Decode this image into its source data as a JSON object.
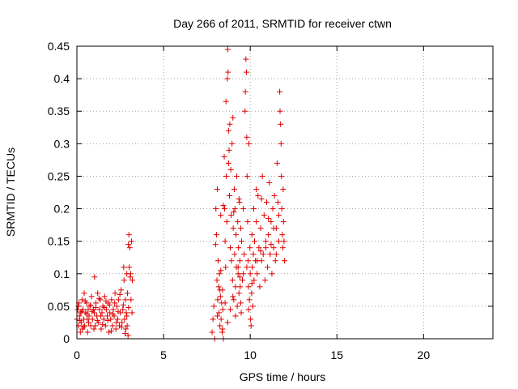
{
  "chart_data": {
    "type": "scatter",
    "title": "Day 266 of 2011, SRMTID for receiver ctwn",
    "xlabel": "GPS time / hours",
    "ylabel": "SRMTID / TECUs",
    "xlim": [
      0,
      24
    ],
    "ylim": [
      0,
      0.45
    ],
    "xticks": [
      0,
      5,
      10,
      15,
      20
    ],
    "xtick_labels": [
      "0",
      "5",
      "10",
      "15",
      "20"
    ],
    "yticks": [
      0,
      0.05,
      0.1,
      0.15,
      0.2,
      0.25,
      0.3,
      0.35,
      0.4,
      0.45
    ],
    "ytick_labels": [
      "0",
      "0.05",
      "0.1",
      "0.15",
      "0.2",
      "0.25",
      "0.3",
      "0.35",
      "0.4",
      "0.45"
    ],
    "grid": true,
    "marker": "+",
    "series": [
      {
        "name": "SRMTID",
        "color": "#e00000",
        "points": [
          [
            0.0,
            0.03
          ],
          [
            0.05,
            0.045
          ],
          [
            0.1,
            0.02
          ],
          [
            0.12,
            0.055
          ],
          [
            0.15,
            0.035
          ],
          [
            0.2,
            0.01
          ],
          [
            0.22,
            0.04
          ],
          [
            0.25,
            0.025
          ],
          [
            0.3,
            0.06
          ],
          [
            0.32,
            0.015
          ],
          [
            0.35,
            0.045
          ],
          [
            0.4,
            0.03
          ],
          [
            0.42,
            0.07
          ],
          [
            0.45,
            0.02
          ],
          [
            0.5,
            0.04
          ],
          [
            0.55,
            0.055
          ],
          [
            0.6,
            0.03
          ],
          [
            0.62,
            0.01
          ],
          [
            0.65,
            0.045
          ],
          [
            0.7,
            0.035
          ],
          [
            0.75,
            0.05
          ],
          [
            0.8,
            0.02
          ],
          [
            0.85,
            0.065
          ],
          [
            0.9,
            0.03
          ],
          [
            0.95,
            0.045
          ],
          [
            1.0,
            0.04
          ],
          [
            1.02,
            0.095
          ],
          [
            1.05,
            0.02
          ],
          [
            1.1,
            0.055
          ],
          [
            1.15,
            0.035
          ],
          [
            1.2,
            0.07
          ],
          [
            1.25,
            0.025
          ],
          [
            1.3,
            0.045
          ],
          [
            1.35,
            0.06
          ],
          [
            1.4,
            0.015
          ],
          [
            1.45,
            0.04
          ],
          [
            1.5,
            0.05
          ],
          [
            1.55,
            0.03
          ],
          [
            1.6,
            0.065
          ],
          [
            1.65,
            0.02
          ],
          [
            1.7,
            0.045
          ],
          [
            1.75,
            0.035
          ],
          [
            1.8,
            0.055
          ],
          [
            1.85,
            0.01
          ],
          [
            1.9,
            0.04
          ],
          [
            1.95,
            0.03
          ],
          [
            2.0,
            0.06
          ],
          [
            2.05,
            0.02
          ],
          [
            2.1,
            0.045
          ],
          [
            2.15,
            0.035
          ],
          [
            2.2,
            0.07
          ],
          [
            2.25,
            0.015
          ],
          [
            2.3,
            0.05
          ],
          [
            2.35,
            0.03
          ],
          [
            2.4,
            0.06
          ],
          [
            2.45,
            0.02
          ],
          [
            2.5,
            0.04
          ],
          [
            2.55,
            0.075
          ],
          [
            2.6,
            0.025
          ],
          [
            2.65,
            0.045
          ],
          [
            2.7,
            0.11
          ],
          [
            2.72,
            0.09
          ],
          [
            2.75,
            0.03
          ],
          [
            2.8,
            0.06
          ],
          [
            2.82,
            0.015
          ],
          [
            2.85,
            0.04
          ],
          [
            2.88,
            0.1
          ],
          [
            2.9,
            0.02
          ],
          [
            2.92,
            0.07
          ],
          [
            2.95,
            0.005
          ],
          [
            2.97,
            0.145
          ],
          [
            3.0,
            0.16
          ],
          [
            3.02,
            0.11
          ],
          [
            3.05,
            0.14
          ],
          [
            3.08,
            0.095
          ],
          [
            3.1,
            0.1
          ],
          [
            3.12,
            0.06
          ],
          [
            3.15,
            0.15
          ],
          [
            3.18,
            0.04
          ],
          [
            3.2,
            0.09
          ],
          [
            0.08,
            0.05
          ],
          [
            0.18,
            0.028
          ],
          [
            0.28,
            0.042
          ],
          [
            0.38,
            0.018
          ],
          [
            0.48,
            0.058
          ],
          [
            0.58,
            0.038
          ],
          [
            0.68,
            0.025
          ],
          [
            0.78,
            0.052
          ],
          [
            0.88,
            0.042
          ],
          [
            0.98,
            0.015
          ],
          [
            1.08,
            0.048
          ],
          [
            1.18,
            0.028
          ],
          [
            1.28,
            0.062
          ],
          [
            1.38,
            0.035
          ],
          [
            1.48,
            0.022
          ],
          [
            1.58,
            0.048
          ],
          [
            1.68,
            0.058
          ],
          [
            1.78,
            0.028
          ],
          [
            1.88,
            0.052
          ],
          [
            1.98,
            0.012
          ],
          [
            2.08,
            0.038
          ],
          [
            2.18,
            0.055
          ],
          [
            2.28,
            0.025
          ],
          [
            2.38,
            0.042
          ],
          [
            2.48,
            0.068
          ],
          [
            2.58,
            0.018
          ],
          [
            2.68,
            0.052
          ],
          [
            2.78,
            0.008
          ],
          [
            2.88,
            0.035
          ],
          [
            2.98,
            0.048
          ],
          [
            7.8,
            0.01
          ],
          [
            7.85,
            0.03
          ],
          [
            7.9,
            0.05
          ],
          [
            7.95,
            0.0
          ],
          [
            8.0,
            0.145
          ],
          [
            8.02,
            0.2
          ],
          [
            8.05,
            0.16
          ],
          [
            8.08,
            0.09
          ],
          [
            8.1,
            0.23
          ],
          [
            8.12,
            0.06
          ],
          [
            8.15,
            0.12
          ],
          [
            8.18,
            0.08
          ],
          [
            8.2,
            0.04
          ],
          [
            8.22,
            0.1
          ],
          [
            8.25,
            0.02
          ],
          [
            8.28,
            0.065
          ],
          [
            8.3,
            0.105
          ],
          [
            8.32,
            0.03
          ],
          [
            8.35,
            0.055
          ],
          [
            8.38,
            0.01
          ],
          [
            8.4,
            0.075
          ],
          [
            8.42,
            0.045
          ],
          [
            8.45,
            0.0
          ],
          [
            8.5,
            0.28
          ],
          [
            8.52,
            0.2
          ],
          [
            8.55,
            0.15
          ],
          [
            8.58,
            0.11
          ],
          [
            8.6,
            0.365
          ],
          [
            8.62,
            0.25
          ],
          [
            8.65,
            0.18
          ],
          [
            8.68,
            0.4
          ],
          [
            8.7,
            0.445
          ],
          [
            8.72,
            0.41
          ],
          [
            8.75,
            0.32
          ],
          [
            8.78,
            0.29
          ],
          [
            8.8,
            0.22
          ],
          [
            8.82,
            0.33
          ],
          [
            8.85,
            0.14
          ],
          [
            8.88,
            0.26
          ],
          [
            8.9,
            0.19
          ],
          [
            8.92,
            0.12
          ],
          [
            8.95,
            0.3
          ],
          [
            8.98,
            0.09
          ],
          [
            9.0,
            0.34
          ],
          [
            9.02,
            0.17
          ],
          [
            9.05,
            0.06
          ],
          [
            9.08,
            0.23
          ],
          [
            9.1,
            0.13
          ],
          [
            9.12,
            0.2
          ],
          [
            9.15,
            0.08
          ],
          [
            9.18,
            0.16
          ],
          [
            9.2,
            0.11
          ],
          [
            9.22,
            0.25
          ],
          [
            9.25,
            0.05
          ],
          [
            9.28,
            0.18
          ],
          [
            9.3,
            0.1
          ],
          [
            9.32,
            0.14
          ],
          [
            9.35,
            0.07
          ],
          [
            9.38,
            0.21
          ],
          [
            9.4,
            0.12
          ],
          [
            9.42,
            0.08
          ],
          [
            9.45,
            0.17
          ],
          [
            9.48,
            0.04
          ],
          [
            9.5,
            0.15
          ],
          [
            9.55,
            0.09
          ],
          [
            9.6,
            0.2
          ],
          [
            9.65,
            0.13
          ],
          [
            9.7,
            0.35
          ],
          [
            9.72,
            0.38
          ],
          [
            9.75,
            0.43
          ],
          [
            9.78,
            0.41
          ],
          [
            9.8,
            0.31
          ],
          [
            9.82,
            0.25
          ],
          [
            9.85,
            0.18
          ],
          [
            9.88,
            0.12
          ],
          [
            9.9,
            0.08
          ],
          [
            9.92,
            0.3
          ],
          [
            9.95,
            0.06
          ],
          [
            9.98,
            0.14
          ],
          [
            10.0,
            0.1
          ],
          [
            10.02,
            0.03
          ],
          [
            10.05,
            0.02
          ],
          [
            10.08,
            0.07
          ],
          [
            10.1,
            0.16
          ],
          [
            10.12,
            0.11
          ],
          [
            10.15,
            0.05
          ],
          [
            10.18,
            0.13
          ],
          [
            10.2,
            0.2
          ],
          [
            10.22,
            0.09
          ],
          [
            10.25,
            0.15
          ],
          [
            10.3,
            0.12
          ],
          [
            10.35,
            0.18
          ],
          [
            10.4,
            0.1
          ],
          [
            10.45,
            0.22
          ],
          [
            10.5,
            0.14
          ],
          [
            10.55,
            0.08
          ],
          [
            10.6,
            0.17
          ],
          [
            10.65,
            0.12
          ],
          [
            10.7,
            0.25
          ],
          [
            10.75,
            0.13
          ],
          [
            10.8,
            0.19
          ],
          [
            10.85,
            0.09
          ],
          [
            10.9,
            0.15
          ],
          [
            10.95,
            0.21
          ],
          [
            11.0,
            0.11
          ],
          [
            11.05,
            0.16
          ],
          [
            11.1,
            0.24
          ],
          [
            11.15,
            0.13
          ],
          [
            11.2,
            0.18
          ],
          [
            11.25,
            0.1
          ],
          [
            11.3,
            0.2
          ],
          [
            11.35,
            0.14
          ],
          [
            11.4,
            0.22
          ],
          [
            11.45,
            0.12
          ],
          [
            11.5,
            0.17
          ],
          [
            11.55,
            0.27
          ],
          [
            11.6,
            0.21
          ],
          [
            11.65,
            0.15
          ],
          [
            11.7,
            0.38
          ],
          [
            11.72,
            0.35
          ],
          [
            11.75,
            0.33
          ],
          [
            11.78,
            0.3
          ],
          [
            11.8,
            0.25
          ],
          [
            11.82,
            0.2
          ],
          [
            11.85,
            0.16
          ],
          [
            11.88,
            0.14
          ],
          [
            11.9,
            0.23
          ],
          [
            11.92,
            0.18
          ],
          [
            11.95,
            0.15
          ],
          [
            11.98,
            0.12
          ],
          [
            9.3,
            0.11
          ],
          [
            9.4,
            0.095
          ],
          [
            9.6,
            0.1
          ],
          [
            9.8,
            0.11
          ],
          [
            10.1,
            0.085
          ],
          [
            10.4,
            0.12
          ],
          [
            10.6,
            0.135
          ],
          [
            10.9,
            0.14
          ],
          [
            11.2,
            0.145
          ],
          [
            11.5,
            0.13
          ],
          [
            8.3,
            0.19
          ],
          [
            8.45,
            0.205
          ],
          [
            8.75,
            0.27
          ],
          [
            9.05,
            0.195
          ],
          [
            9.35,
            0.215
          ],
          [
            10.35,
            0.23
          ],
          [
            10.65,
            0.215
          ],
          [
            11.05,
            0.185
          ],
          [
            11.35,
            0.17
          ],
          [
            11.65,
            0.19
          ],
          [
            8.1,
            0.035
          ],
          [
            8.25,
            0.075
          ],
          [
            8.4,
            0.015
          ],
          [
            8.55,
            0.055
          ],
          [
            8.7,
            0.025
          ],
          [
            8.85,
            0.045
          ],
          [
            9.0,
            0.065
          ],
          [
            9.15,
            0.035
          ],
          [
            9.45,
            0.055
          ],
          [
            9.9,
            0.045
          ]
        ]
      }
    ]
  }
}
